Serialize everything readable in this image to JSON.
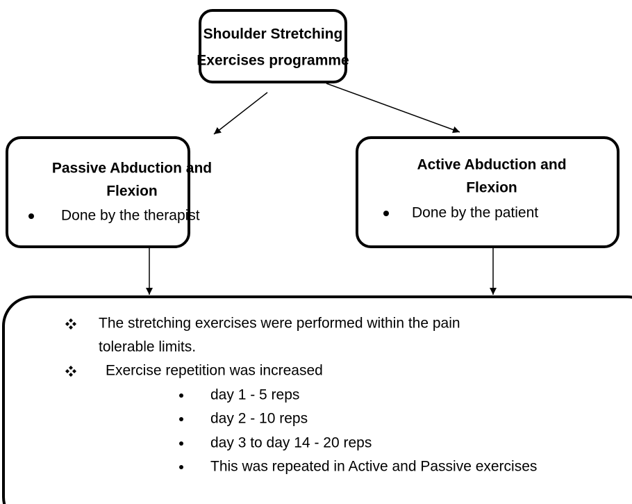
{
  "root": {
    "title": [
      "Shoulder Stretching",
      "Exercises programme"
    ]
  },
  "branches": [
    {
      "title": [
        "Passive Abduction and",
        "Flexion"
      ],
      "bullet": "Done by the therapist"
    },
    {
      "title": [
        "Active Abduction and",
        "Flexion"
      ],
      "bullet": "Done by the patient"
    }
  ],
  "summary": {
    "items": [
      {
        "lines": [
          "The stretching exercises were performed within the pain",
          "tolerable limits."
        ]
      },
      {
        "lines": [
          "Exercise repetition was increased"
        ],
        "subitems": [
          "day 1 - 5 reps",
          "day 2 - 10 reps",
          "day 3 to day 14 - 20 reps",
          "This was repeated in Active and Passive exercises"
        ]
      }
    ]
  }
}
